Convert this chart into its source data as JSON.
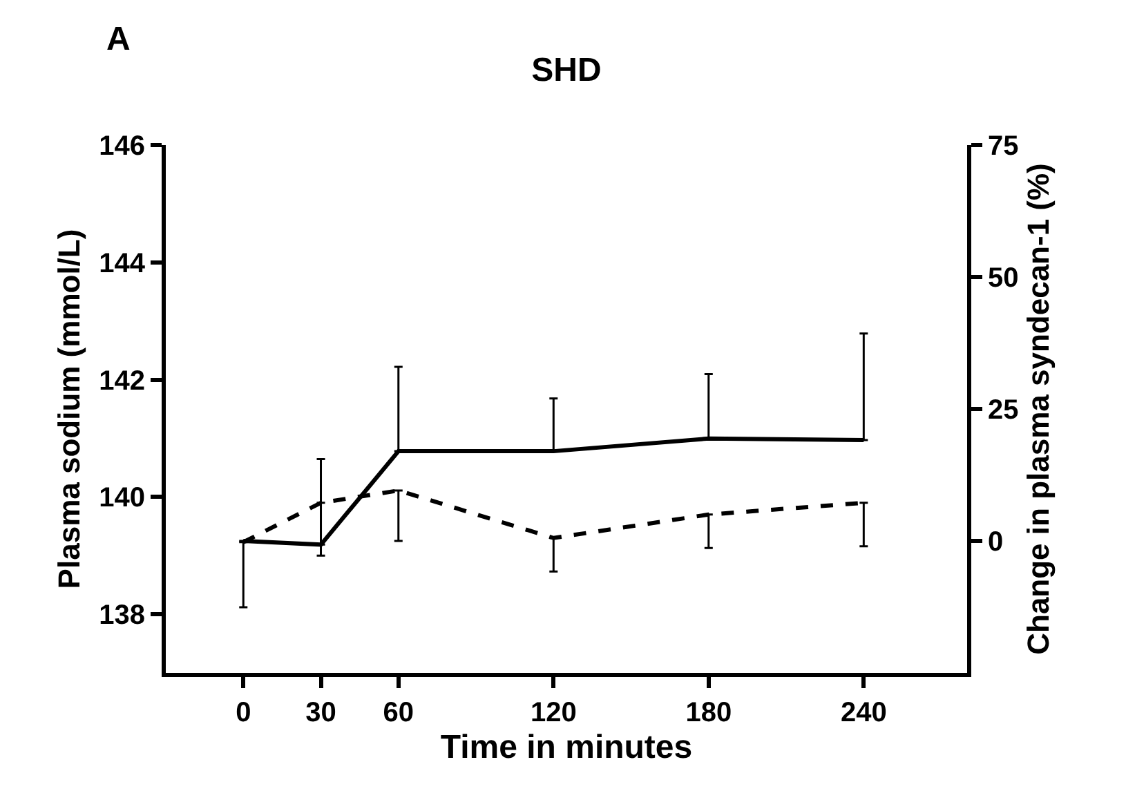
{
  "chart_data": {
    "type": "line",
    "title": "SHD",
    "xlabel": "Time in minutes",
    "ylabel": "Plasma sodium (mmol/L)",
    "y2label": "Change in plasma syndecan-1 (%)",
    "annotations": [
      "A"
    ],
    "x": [
      0,
      30,
      60,
      120,
      180,
      240
    ],
    "xlim": [
      -30,
      280
    ],
    "xticks": [
      0,
      30,
      60,
      120,
      180,
      240
    ],
    "ylim": [
      137,
      146
    ],
    "yticks": [
      138,
      140,
      142,
      144,
      146
    ],
    "y2lim": [
      -25,
      75
    ],
    "y2ticks": [
      0,
      25,
      50,
      75
    ],
    "grid": false,
    "marker": "none",
    "series": [
      {
        "color": "#000000",
        "line_style": "dashed",
        "values": [
          139.23,
          139.9,
          140.11,
          139.3,
          139.7,
          139.9
        ],
        "errors": [
          [
            138.12,
            139.23
          ],
          [
            139.0,
            139.9
          ],
          [
            139.25,
            140.11
          ],
          [
            138.73,
            139.3
          ],
          [
            139.13,
            139.7
          ],
          [
            139.16,
            139.9
          ]
        ]
      },
      {
        "color": "#000000",
        "line_style": "solid",
        "axis": "y2",
        "values": [
          0,
          -0.7,
          17,
          17,
          19.4,
          19.1
        ],
        "errors": [
          null,
          [
            -0.7,
            15.5
          ],
          [
            17,
            33
          ],
          [
            17,
            27
          ],
          [
            19.4,
            31.6
          ],
          [
            19.1,
            39.3
          ]
        ]
      }
    ]
  }
}
